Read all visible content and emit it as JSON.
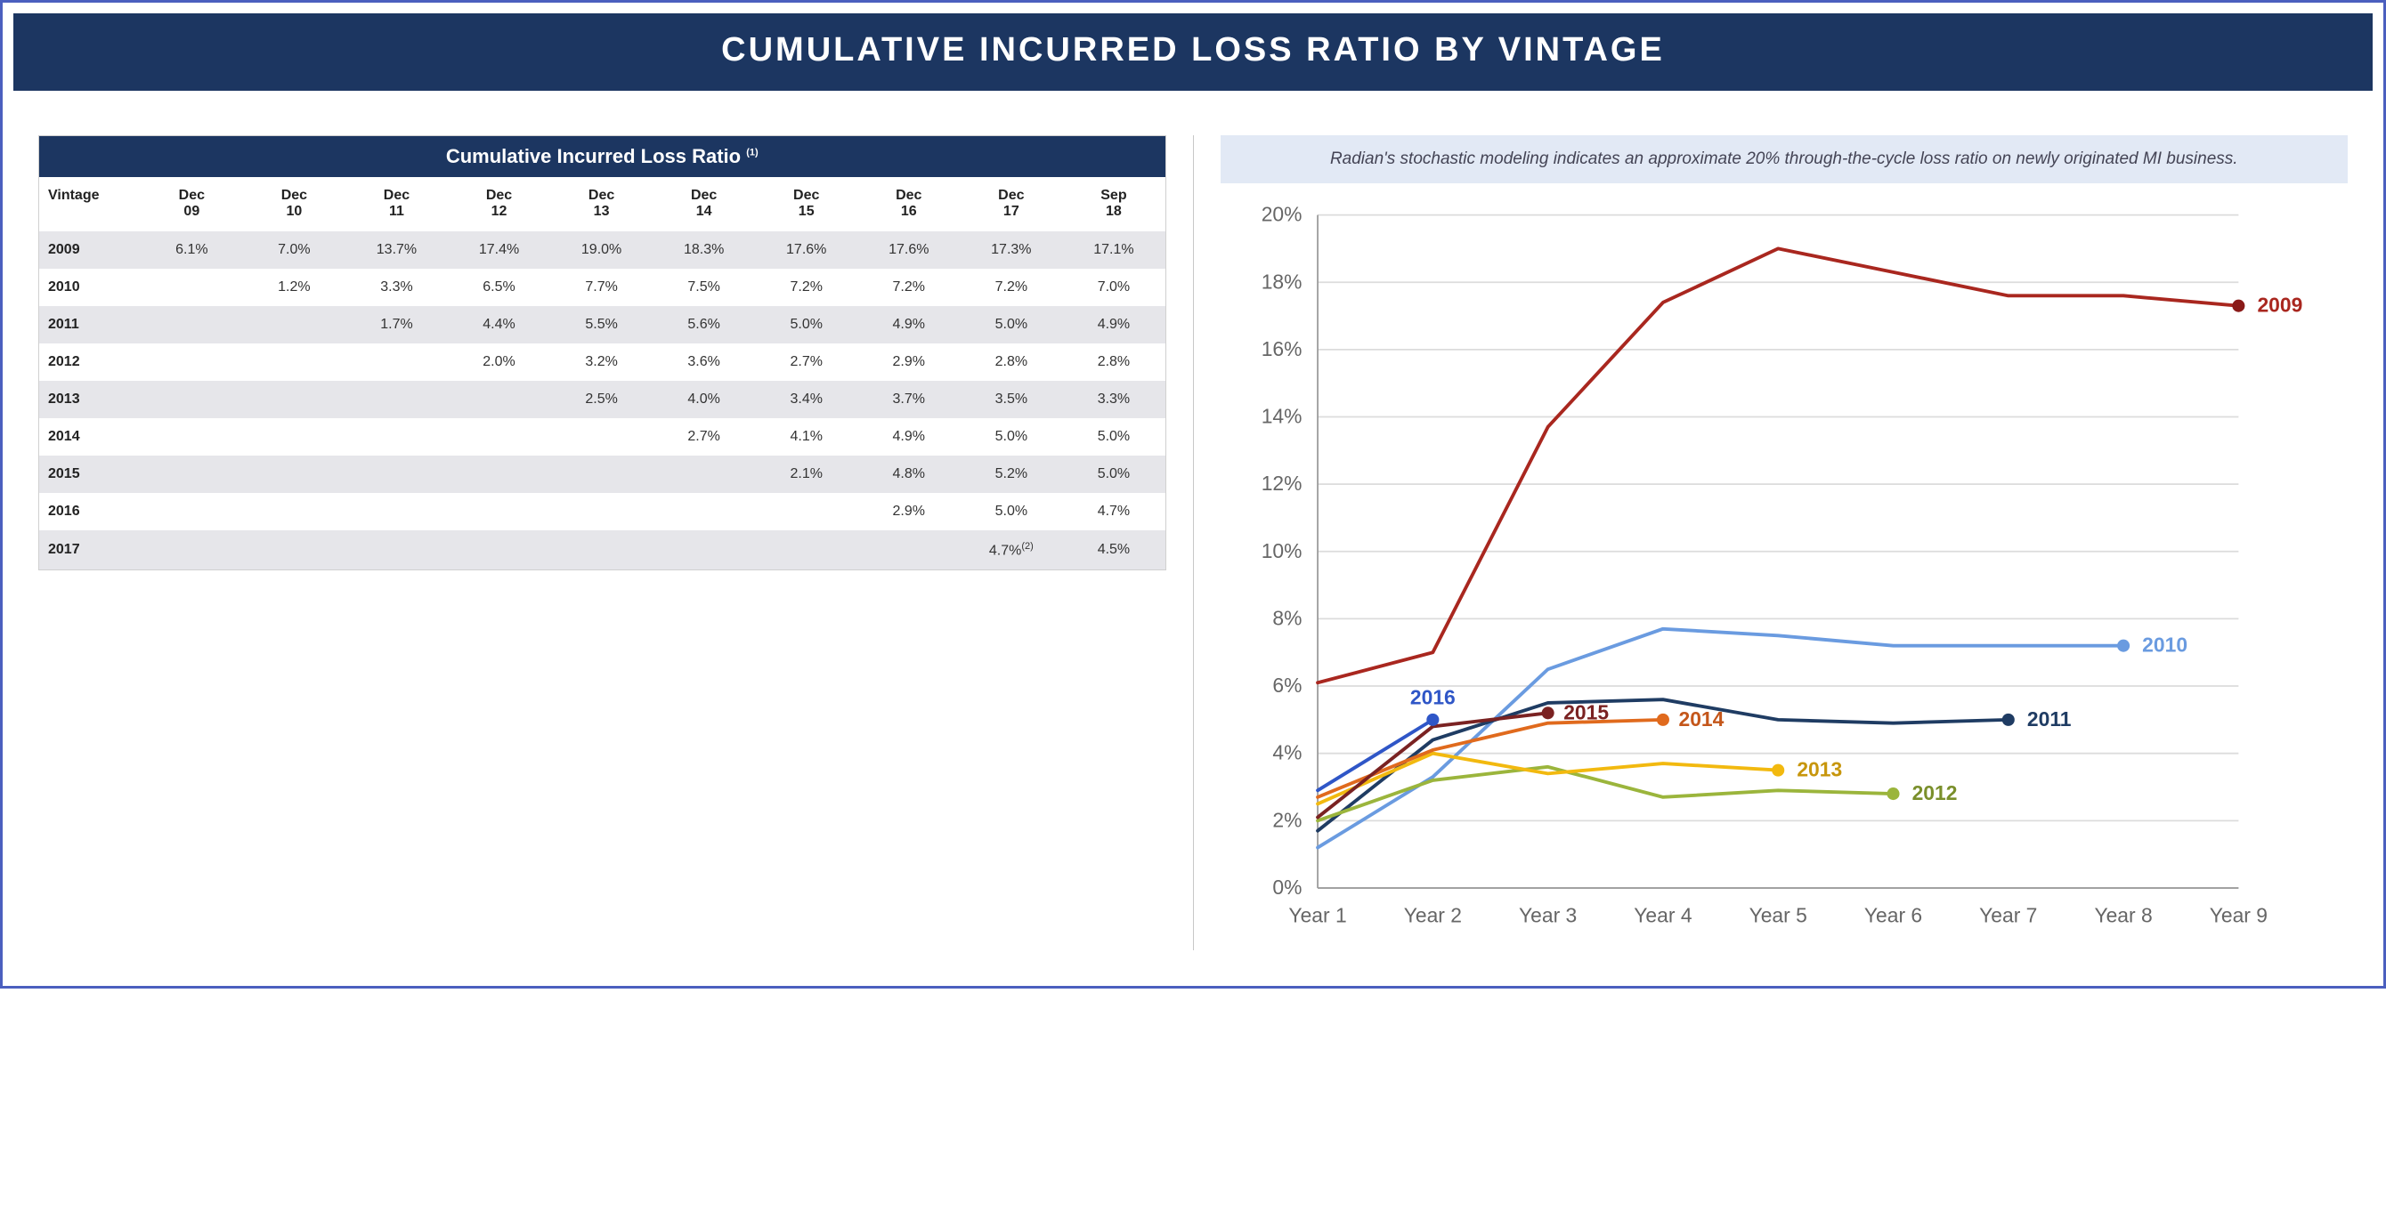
{
  "title": "CUMULATIVE INCURRED LOSS RATIO BY VINTAGE",
  "colors": {
    "frame_border": "#4b5fbf",
    "header_bg": "#1c3661",
    "header_text": "#ffffff",
    "callout_bg": "#e2e9f5",
    "callout_text": "#445566",
    "row_alt_bg": "#e6e6ea",
    "grid": "#d9d9d9",
    "axis_text": "#666666"
  },
  "table": {
    "title": "Cumulative Incurred Loss Ratio",
    "title_sup": "(1)",
    "columns": [
      "Vintage",
      "Dec 09",
      "Dec 10",
      "Dec 11",
      "Dec 12",
      "Dec 13",
      "Dec 14",
      "Dec 15",
      "Dec 16",
      "Dec 17",
      "Sep 18"
    ],
    "rows": [
      {
        "vintage": "2009",
        "cells": [
          "6.1%",
          "7.0%",
          "13.7%",
          "17.4%",
          "19.0%",
          "18.3%",
          "17.6%",
          "17.6%",
          "17.3%",
          "17.1%"
        ]
      },
      {
        "vintage": "2010",
        "cells": [
          "",
          "1.2%",
          "3.3%",
          "6.5%",
          "7.7%",
          "7.5%",
          "7.2%",
          "7.2%",
          "7.2%",
          "7.0%"
        ]
      },
      {
        "vintage": "2011",
        "cells": [
          "",
          "",
          "1.7%",
          "4.4%",
          "5.5%",
          "5.6%",
          "5.0%",
          "4.9%",
          "5.0%",
          "4.9%"
        ]
      },
      {
        "vintage": "2012",
        "cells": [
          "",
          "",
          "",
          "2.0%",
          "3.2%",
          "3.6%",
          "2.7%",
          "2.9%",
          "2.8%",
          "2.8%"
        ]
      },
      {
        "vintage": "2013",
        "cells": [
          "",
          "",
          "",
          "",
          "2.5%",
          "4.0%",
          "3.4%",
          "3.7%",
          "3.5%",
          "3.3%"
        ]
      },
      {
        "vintage": "2014",
        "cells": [
          "",
          "",
          "",
          "",
          "",
          "2.7%",
          "4.1%",
          "4.9%",
          "5.0%",
          "5.0%"
        ]
      },
      {
        "vintage": "2015",
        "cells": [
          "",
          "",
          "",
          "",
          "",
          "",
          "2.1%",
          "4.8%",
          "5.2%",
          "5.0%"
        ]
      },
      {
        "vintage": "2016",
        "cells": [
          "",
          "",
          "",
          "",
          "",
          "",
          "",
          "2.9%",
          "5.0%",
          "4.7%"
        ]
      },
      {
        "vintage": "2017",
        "cells": [
          "",
          "",
          "",
          "",
          "",
          "",
          "",
          "",
          "4.7%",
          "4.5%"
        ],
        "sup_at": 8,
        "sup": "(2)"
      }
    ]
  },
  "callout": "Radian's stochastic modeling indicates an approximate 20% through-the-cycle loss ratio on newly originated MI business.",
  "chart": {
    "type": "line",
    "x_categories": [
      "Year 1",
      "Year 2",
      "Year 3",
      "Year 4",
      "Year 5",
      "Year 6",
      "Year 7",
      "Year 8",
      "Year 9"
    ],
    "ylim": [
      0,
      20
    ],
    "ytick_step": 2,
    "y_format": "percent",
    "axis_fontsize": 13,
    "line_width": 2.2,
    "marker_radius": 4,
    "grid_color": "#dcdcdc",
    "background": "#ffffff",
    "series": [
      {
        "name": "2009",
        "color": "#a9271f",
        "values": [
          6.1,
          7.0,
          13.7,
          17.4,
          19.0,
          18.3,
          17.6,
          17.6,
          17.3
        ],
        "end_marker": true,
        "marker_color": "#8a1a18",
        "label_end": "2009",
        "label_color": "#a9271f"
      },
      {
        "name": "2010",
        "color": "#6a9be0",
        "values": [
          1.2,
          3.3,
          6.5,
          7.7,
          7.5,
          7.2,
          7.2,
          7.2
        ],
        "end_marker": true,
        "label_end": "2010",
        "label_color": "#6a9be0"
      },
      {
        "name": "2011",
        "color": "#1f3c63",
        "values": [
          1.7,
          4.4,
          5.5,
          5.6,
          5.0,
          4.9,
          5.0
        ],
        "end_marker": true,
        "label_end": "2011",
        "label_color": "#1f3c63"
      },
      {
        "name": "2012",
        "color": "#9bb53c",
        "values": [
          2.0,
          3.2,
          3.6,
          2.7,
          2.9,
          2.8
        ],
        "end_marker": true,
        "label_end": "2012",
        "label_color": "#7a8f2b"
      },
      {
        "name": "2013",
        "color": "#f2b90f",
        "values": [
          2.5,
          4.0,
          3.4,
          3.7,
          3.5
        ],
        "end_marker": true,
        "label_end": "2013",
        "label_color": "#c7960c"
      },
      {
        "name": "2014",
        "color": "#e06a1d",
        "values": [
          2.7,
          4.1,
          4.9,
          5.0
        ],
        "end_marker": true,
        "label_end": "2014",
        "label_color": "#c4561a",
        "label_point_index": 3
      },
      {
        "name": "2015",
        "color": "#7a2222",
        "values": [
          2.1,
          4.8,
          5.2
        ],
        "end_marker": true,
        "label_end": "2015",
        "label_color": "#7a2222",
        "label_point_index": 2
      },
      {
        "name": "2016",
        "color": "#2f56c7",
        "values": [
          2.9,
          5.0
        ],
        "end_marker": true,
        "label_end": "2016",
        "label_color": "#2f56c7",
        "label_point_index": 1,
        "label_position": "above"
      }
    ]
  }
}
